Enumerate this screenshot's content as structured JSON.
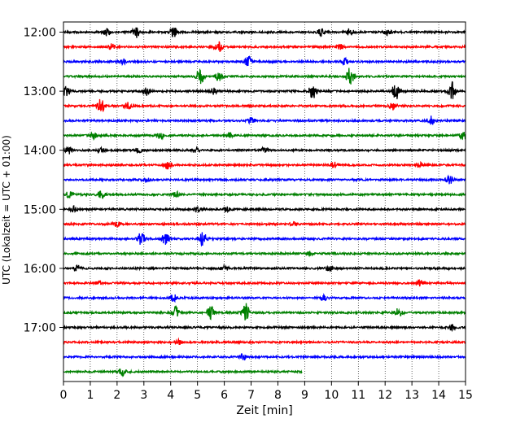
{
  "chart_data": {
    "type": "line",
    "xlabel": "Zeit  [min]",
    "ylabel": "UTC (Lokalzeit = UTC + 01:00)",
    "xlim": [
      0,
      15
    ],
    "x_ticks": [
      "0",
      "1",
      "2",
      "3",
      "4",
      "5",
      "6",
      "7",
      "8",
      "9",
      "10",
      "11",
      "12",
      "13",
      "14",
      "15"
    ],
    "y_tick_labels": [
      "12:00",
      "13:00",
      "14:00",
      "15:00",
      "16:00",
      "17:00"
    ],
    "grid": "vertical dotted",
    "trace_colors": [
      "#000000",
      "#ff0000",
      "#0000ff",
      "#008000"
    ],
    "trace_rows": [
      "12:00",
      "12:15",
      "12:30",
      "12:45",
      "13:00",
      "13:15",
      "13:30",
      "13:45",
      "14:00",
      "14:15",
      "14:30",
      "14:45",
      "15:00",
      "15:15",
      "15:30",
      "15:45",
      "16:00",
      "16:15",
      "16:30",
      "16:45",
      "17:00",
      "17:15",
      "17:30",
      "17:45"
    ],
    "last_trace_end_min": 8.9,
    "events": [
      [
        [
          1.6,
          0.35
        ],
        [
          2.7,
          0.6
        ],
        [
          4.1,
          0.7
        ],
        [
          9.6,
          0.45
        ],
        [
          10.7,
          0.4
        ],
        [
          12.1,
          0.3
        ]
      ],
      [
        [
          1.8,
          0.3
        ],
        [
          5.8,
          0.6
        ],
        [
          10.3,
          0.35
        ]
      ],
      [
        [
          2.2,
          0.3
        ],
        [
          6.9,
          0.55
        ],
        [
          10.5,
          0.35
        ]
      ],
      [
        [
          5.1,
          1.0
        ],
        [
          10.7,
          1.0
        ],
        [
          5.8,
          0.5
        ]
      ],
      [
        [
          0.1,
          0.5
        ],
        [
          3.1,
          0.45
        ],
        [
          5.6,
          0.35
        ],
        [
          9.3,
          0.9
        ],
        [
          12.4,
          1.0
        ],
        [
          14.5,
          1.0
        ]
      ],
      [
        [
          1.4,
          0.9
        ],
        [
          2.4,
          0.4
        ],
        [
          12.3,
          0.45
        ]
      ],
      [
        [
          7.0,
          0.3
        ],
        [
          13.7,
          0.5
        ]
      ],
      [
        [
          1.1,
          0.35
        ],
        [
          3.6,
          0.4
        ],
        [
          6.2,
          0.3
        ],
        [
          14.9,
          0.4
        ]
      ],
      [
        [
          0.2,
          0.35
        ],
        [
          1.4,
          0.3
        ],
        [
          2.8,
          0.3
        ],
        [
          4.9,
          0.3
        ],
        [
          7.5,
          0.3
        ]
      ],
      [
        [
          3.9,
          0.5
        ],
        [
          10.1,
          0.35
        ],
        [
          13.3,
          0.3
        ]
      ],
      [
        [
          3.1,
          0.25
        ],
        [
          14.4,
          0.45
        ]
      ],
      [
        [
          0.2,
          0.35
        ],
        [
          1.4,
          0.4
        ],
        [
          4.2,
          0.3
        ]
      ],
      [
        [
          0.4,
          0.3
        ],
        [
          5.0,
          0.3
        ],
        [
          6.1,
          0.3
        ]
      ],
      [
        [
          2.0,
          0.25
        ],
        [
          8.6,
          0.2
        ]
      ],
      [
        [
          2.9,
          0.7
        ],
        [
          3.8,
          0.6
        ],
        [
          5.2,
          0.8
        ]
      ],
      [
        [
          9.2,
          0.2
        ]
      ],
      [
        [
          0.5,
          0.35
        ],
        [
          6.0,
          0.3
        ],
        [
          9.9,
          0.3
        ]
      ],
      [
        [
          1.3,
          0.25
        ],
        [
          13.3,
          0.3
        ]
      ],
      [
        [
          4.1,
          0.4
        ],
        [
          9.7,
          0.25
        ]
      ],
      [
        [
          4.2,
          0.7
        ],
        [
          5.5,
          0.7
        ],
        [
          6.8,
          1.0
        ],
        [
          12.5,
          0.5
        ]
      ],
      [
        [
          14.5,
          0.3
        ]
      ],
      [
        [
          4.3,
          0.25
        ]
      ],
      [
        [
          6.7,
          0.3
        ]
      ],
      [
        [
          2.2,
          0.4
        ]
      ]
    ]
  }
}
